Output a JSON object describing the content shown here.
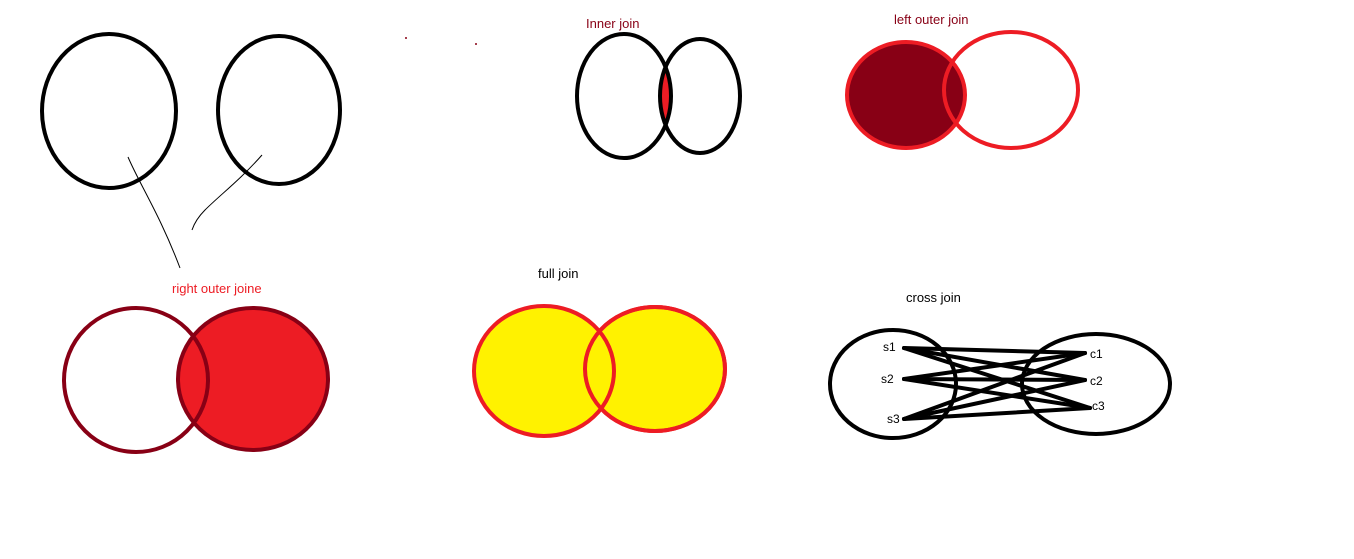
{
  "labels": {
    "inner_join": "Inner join",
    "left_outer_join": "left outer join",
    "right_outer_join": "right outer joine",
    "full_join": "full join",
    "cross_join": "cross join"
  },
  "cross_join_nodes": {
    "left": [
      "s1",
      "s2",
      "s3"
    ],
    "right": [
      "c1",
      "c2",
      "c3"
    ]
  },
  "colors": {
    "outline_black": "#000000",
    "red": "#ed1c24",
    "dark_red": "#880015",
    "yellow": "#fff200",
    "label_dark_red": "#880015",
    "label_red": "#ed1c24",
    "label_black": "#000000"
  }
}
